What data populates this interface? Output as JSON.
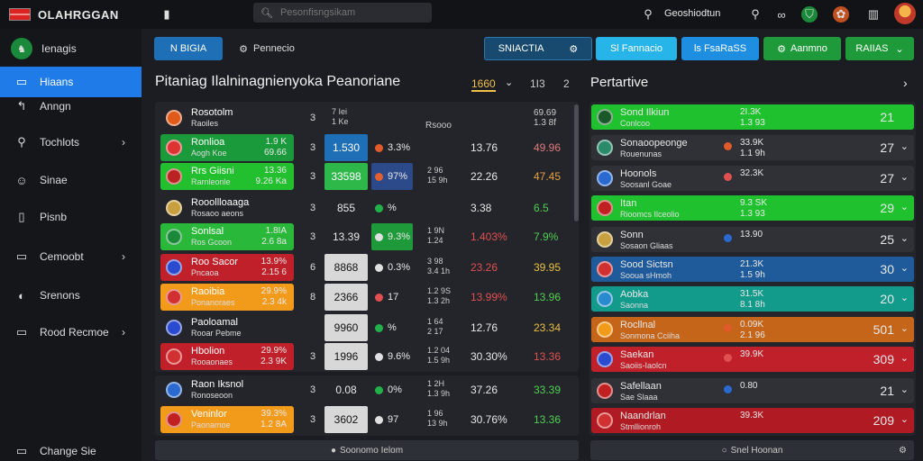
{
  "app": {
    "brand": "OLAHRGGAN"
  },
  "topbar": {
    "search_placeholder": "Pesonfisngsikam",
    "account_label": "Geoshiodtun"
  },
  "sidebar": {
    "items": [
      {
        "label": "Ienagis",
        "icon": "logo-icon"
      },
      {
        "label": "Hiaans",
        "icon": "monitor-icon",
        "active": true
      },
      {
        "label": "Anngn",
        "icon": "back-icon"
      },
      {
        "label": "Tochlots",
        "icon": "search-icon",
        "chevron": true
      },
      {
        "label": "Sinae",
        "icon": "person-icon"
      },
      {
        "label": "Pisnb",
        "icon": "document-icon"
      },
      {
        "label": "Cemoobt",
        "icon": "screen-icon",
        "chevron": true
      },
      {
        "label": "Srenons",
        "icon": "moon-icon"
      },
      {
        "label": "Rood Recmoe",
        "icon": "monitor-icon",
        "chevron": true
      },
      {
        "label": "Change Sie",
        "icon": "screen-icon"
      }
    ]
  },
  "toolbar": {
    "btn1": "N BIGIA",
    "btn2": "Pennecio",
    "btn3": "SNIACTIA",
    "btn4": "Sl Fannacio",
    "btn5": "ls FsaRaSS",
    "btn6": "Aanmno",
    "btn7": "RAIIAS"
  },
  "main": {
    "title": "Pitaniag Ilalninagnienyoka Peanoriane",
    "sort_value": "1660",
    "page_value": "1I3",
    "page_sep": "2",
    "header": {
      "team": "Rosotolm",
      "team_sub": "Raoiles",
      "num": "3",
      "mini": "7 Iei\n1 Ke",
      "col_v1": "Rsooo",
      "col_v2": "69.69\n1.3 8f"
    },
    "rows": [
      {
        "name": "Ronlioa",
        "sub": "Aogh Koe",
        "tval": "1.9 K\n69.66",
        "team_color": "#1a9a3a",
        "crest": "#d33",
        "num": "3",
        "odd": "1.530",
        "odd_color": "#1e6fb5",
        "pct": "3.3%",
        "pct_dot": "#e05a2a",
        "pct_bg": "",
        "mini": "",
        "v1": "13.76",
        "v2": "49.96",
        "v1_color": "#e8e8e8",
        "v2_color": "#e07a7a"
      },
      {
        "name": "Rrs Giisni",
        "sub": "Rarnleonle",
        "tval": "13.36\n9.26 Ka",
        "team_color": "#22c02e",
        "crest": "#b22",
        "num": "3",
        "odd": "33598",
        "odd_color": "#2fb84a",
        "pct": "97%",
        "pct_dot": "#e06030",
        "pct_bg": "#2c4a8a",
        "mini": "2 96\n15 9h",
        "v1": "22.26",
        "v2": "47.45",
        "v1_color": "#e8e8e8",
        "v2_color": "#e8a040"
      },
      {
        "name": "Rooollloaaga",
        "sub": "Rosaoo aeons",
        "tval": "",
        "team_color": "",
        "crest": "#c8a040",
        "num": "3",
        "odd": "855",
        "odd_color": "",
        "pct": "%",
        "pct_dot": "#22b04a",
        "pct_bg": "",
        "mini": "",
        "v1": "3.38",
        "v2": "6.5",
        "v1_color": "#e8e8e8",
        "v2_color": "#4fd04f"
      },
      {
        "name": "Sonlsal",
        "sub": "Ros Gcoon",
        "tval": "1.8IA\n2.6 8a",
        "team_color": "#2ab83a",
        "crest": "#1a8a3a",
        "num": "3",
        "odd": "13.39",
        "odd_color": "",
        "pct": "9.3%",
        "pct_dot": "#e0e0e0",
        "pct_bg": "#1f9a3a",
        "mini": "1 9N\n1.24",
        "v1": "1.403%",
        "v2": "7.9%",
        "v1_color": "#e05050",
        "v2_color": "#4fd04f"
      },
      {
        "name": "Roo Sacor",
        "sub": "Pncaoa",
        "tval": "13.9%\n2.15 6",
        "team_color": "#c0202a",
        "crest": "#2a4ad0",
        "num": "6",
        "odd": "8868",
        "odd_color": "#d8d8d8",
        "pct": "0.3%",
        "pct_dot": "#e0e0e0",
        "pct_bg": "",
        "mini": "3 98\n3.4 1h",
        "v1": "23.26",
        "v2": "39.95",
        "v1_color": "#e05050",
        "v2_color": "#e8c040"
      },
      {
        "name": "Raoibia",
        "sub": "Ponanoraes",
        "tval": "29.9%\n2.3 4k",
        "team_color": "#f29a1a",
        "crest": "#d03030",
        "num": "8",
        "odd": "2366",
        "odd_color": "#d8d8d8",
        "pct": "17",
        "pct_dot": "#e05050",
        "pct_bg": "",
        "mini": "1.2 9S\n1.3 2h",
        "v1": "13.99%",
        "v2": "13.96",
        "v1_color": "#e05050",
        "v2_color": "#4fd04f"
      },
      {
        "name": "Paoloamal",
        "sub": "Rooar Pebme",
        "tval": "",
        "team_color": "",
        "crest": "#2a4ad0",
        "num": "",
        "odd": "9960",
        "odd_color": "#d8d8d8",
        "pct": "%",
        "pct_dot": "#22b04a",
        "pct_bg": "",
        "mini": "1 64\n2 17",
        "v1": "12.76",
        "v2": "23.34",
        "v1_color": "#e8e8e8",
        "v2_color": "#e8c040"
      },
      {
        "name": "Hbolion",
        "sub": "Rooaonaes",
        "tval": "29.9%\n2.3 9K",
        "team_color": "#c0202a",
        "crest": "#d03030",
        "num": "3",
        "odd": "1996",
        "odd_color": "#d8d8d8",
        "pct": "9.6%",
        "pct_dot": "#e0e0e0",
        "pct_bg": "",
        "mini": "1.2 04\n1.5 9h",
        "v1": "30.30%",
        "v2": "13.36",
        "v1_color": "#e8e8e8",
        "v2_color": "#e05050"
      },
      {
        "name": "Raon Iksnol",
        "sub": "Ronoseoon",
        "tval": "",
        "team_color": "",
        "crest": "#2a6ad0",
        "num": "3",
        "odd": "0.08",
        "odd_color": "",
        "pct": "0%",
        "pct_dot": "#22b04a",
        "pct_bg": "",
        "mini": "1 2H\n1.3 9h",
        "v1": "37.26",
        "v2": "33.39",
        "v1_color": "#e8e8e8",
        "v2_color": "#4fd04f"
      },
      {
        "name": "Veninlor",
        "sub": "Paonamoe",
        "tval": "39.3%\n1.2 8A",
        "team_color": "#f29a1a",
        "crest": "#c02020",
        "num": "3",
        "odd": "3602",
        "odd_color": "#d8d8d8",
        "pct": "97",
        "pct_dot": "#e0e0e0",
        "pct_bg": "",
        "mini": "1 96\n13 9h",
        "v1": "30.76%",
        "v2": "13.36",
        "v1_color": "#e8e8e8",
        "v2_color": "#4fd04f"
      }
    ],
    "footer": "Soonomo Ielom"
  },
  "right": {
    "title": "Pertartive",
    "rows": [
      {
        "name": "Sond Ilkiun",
        "sub": "Conlcoo",
        "mid": "2I.3K\n1.3 93",
        "val": "21",
        "bg": "#1fc22e",
        "crest": "#1a5a2a",
        "mid_dot": "",
        "chev": false
      },
      {
        "name": "Sonaoopeonge",
        "sub": "Rouenunas",
        "mid": "33.9K\n1.1 9h",
        "val": "27",
        "bg": "#2f3137",
        "crest": "#2a8a6a",
        "mid_dot": "#e05a2a",
        "chev": true
      },
      {
        "name": "Hoonols",
        "sub": "Soosanl Goae",
        "mid": "32.3K\n",
        "val": "27",
        "bg": "#2f3137",
        "crest": "#2a6ad0",
        "mid_dot": "#e05050",
        "chev": true
      },
      {
        "name": "Itan",
        "sub": "Rioomcs Ilceolio",
        "mid": "9.3 SK\n1.3 93",
        "val": "29",
        "bg": "#1fc22e",
        "crest": "#c02020",
        "mid_dot": "",
        "chev": true
      },
      {
        "name": "Sonn",
        "sub": "Sosaon Gliaas",
        "mid": "13.90\n",
        "val": "25",
        "bg": "#2f3137",
        "crest": "#c8a040",
        "mid_dot": "#2a6ad0",
        "chev": true
      },
      {
        "name": "Sood Sictsn",
        "sub": "Sooua sHmoh",
        "mid": "21.3K\n1.5 9h",
        "val": "30",
        "bg": "#1f5a9a",
        "crest": "#d03030",
        "mid_dot": "",
        "chev": true
      },
      {
        "name": "Aobka",
        "sub": "Saonna",
        "mid": "31.5K\n8.1 8h",
        "val": "20",
        "bg": "#129a8a",
        "crest": "#2a8ad0",
        "mid_dot": "",
        "chev": true
      },
      {
        "name": "Rocllnal",
        "sub": "Sonmona Cciiha",
        "mid": "0.09K\n2.1 96",
        "val": "501",
        "bg": "#c4651a",
        "crest": "#f29a1a",
        "mid_dot": "#e05a2a",
        "chev": true
      },
      {
        "name": "Saekan",
        "sub": "Saoiis-Iaolcn",
        "mid": "39.9K\n",
        "val": "309",
        "bg": "#c0202a",
        "crest": "#2a4ad0",
        "mid_dot": "#e05050",
        "chev": true
      },
      {
        "name": "Safellaan",
        "sub": "Sae Slaaa",
        "mid": "0.80\n",
        "val": "21",
        "bg": "#2f3137",
        "crest": "#c02020",
        "mid_dot": "#2a6ad0",
        "chev": true
      },
      {
        "name": "Naandrlan",
        "sub": "Stmllionroh",
        "mid": "39.3K\n",
        "val": "209",
        "bg": "#b01a22",
        "crest": "#d03030",
        "mid_dot": "",
        "chev": true
      }
    ],
    "footer": "Snel Hoonan"
  }
}
